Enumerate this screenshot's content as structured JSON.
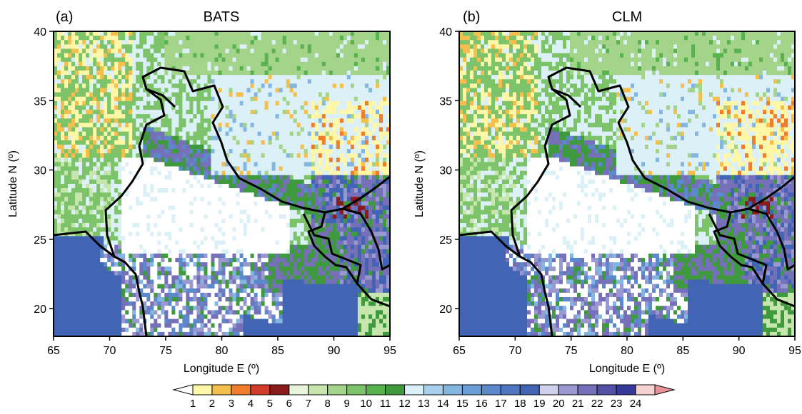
{
  "panels": [
    {
      "letter": "(a)",
      "title": "BATS",
      "xlabel": "Longitude E (º)",
      "ylabel": "Latitude N (º)",
      "xticks": [
        "65",
        "70",
        "75",
        "80",
        "85",
        "90",
        "95"
      ],
      "yticks": [
        "20",
        "25",
        "30",
        "35",
        "40"
      ],
      "variant": 0
    },
    {
      "letter": "(b)",
      "title": "CLM",
      "xlabel": "Longitude E (º)",
      "ylabel": "Latitude N (º)",
      "xticks": [
        "65",
        "70",
        "75",
        "80",
        "85",
        "90",
        "95"
      ],
      "yticks": [
        "20",
        "25",
        "30",
        "35",
        "40"
      ],
      "variant": 1
    }
  ],
  "extent": {
    "lon": [
      65,
      95
    ],
    "lat": [
      18,
      40
    ]
  },
  "colorbar": {
    "labels": [
      "1",
      "2",
      "3",
      "4",
      "5",
      "6",
      "7",
      "8",
      "9",
      "10",
      "11",
      "12",
      "13",
      "14",
      "15",
      "16",
      "17",
      "18",
      "19",
      "20",
      "21",
      "22",
      "23",
      "24"
    ],
    "colors": [
      "#fff7a8",
      "#f4bf4c",
      "#ef7d2b",
      "#d23a2a",
      "#8b1a1a",
      "#e8f4dc",
      "#c6e6ae",
      "#a4d48a",
      "#7cc36a",
      "#58b24e",
      "#3f9a3e",
      "#dcf0f8",
      "#a8d0ec",
      "#84b6e2",
      "#6a9ed8",
      "#5c88cc",
      "#4f76c0",
      "#4264b4",
      "#cfd1ec",
      "#9a98d0",
      "#7670b8",
      "#5250a6",
      "#343896",
      "#f7d2d2"
    ],
    "under_color": "#ffffff",
    "over_color": "#e8939a"
  }
}
